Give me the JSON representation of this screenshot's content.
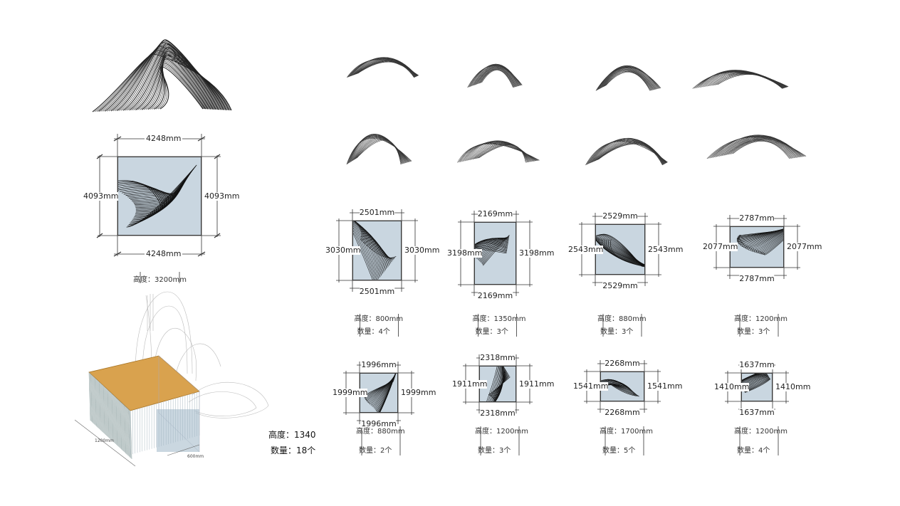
{
  "main_plan": {
    "top": "4248mm",
    "bottom": "4248mm",
    "left": "4093mm",
    "right": "4093mm",
    "height_note": "高度：3200mm"
  },
  "plans": [
    {
      "top": "2501mm",
      "bottom": "2501mm",
      "left": "3030mm",
      "right": "3030mm",
      "height_note": "高度：800mm",
      "count_note": "数量：4个"
    },
    {
      "top": "2169mm",
      "bottom": "2169mm",
      "left": "3198mm",
      "right": "3198mm",
      "height_note": "高度：1350mm",
      "count_note": "数量：3个"
    },
    {
      "top": "2529mm",
      "bottom": "2529mm",
      "left": "2543mm",
      "right": "2543mm",
      "height_note": "高度：880mm",
      "count_note": "数量：3个"
    },
    {
      "top": "2787mm",
      "bottom": "2787mm",
      "left": "2077mm",
      "right": "2077mm",
      "height_note": "高度：1200mm",
      "count_note": "数量：3个"
    },
    {
      "top": "1996mm",
      "bottom": "1996mm",
      "left": "1999mm",
      "right": "1999mm",
      "height_note": "高度：880mm",
      "count_note": "数量：2个"
    },
    {
      "top": "2318mm",
      "bottom": "2318mm",
      "left": "1911mm",
      "right": "1911mm",
      "height_note": "高度：1200mm",
      "count_note": "数量：3个"
    },
    {
      "top": "2268mm",
      "bottom": "2268mm",
      "left": "1541mm",
      "right": "1541mm",
      "height_note": "高度：1700mm",
      "count_note": "数量：5个"
    },
    {
      "top": "1637mm",
      "bottom": "1637mm",
      "left": "1410mm",
      "right": "1410mm",
      "height_note": "高度：1200mm",
      "count_note": "数量：4个"
    }
  ],
  "bench": {
    "height_label": "高度：1340",
    "count_label": "数量：18个",
    "dim_length": "1200mm",
    "dim_width": "600mm"
  }
}
